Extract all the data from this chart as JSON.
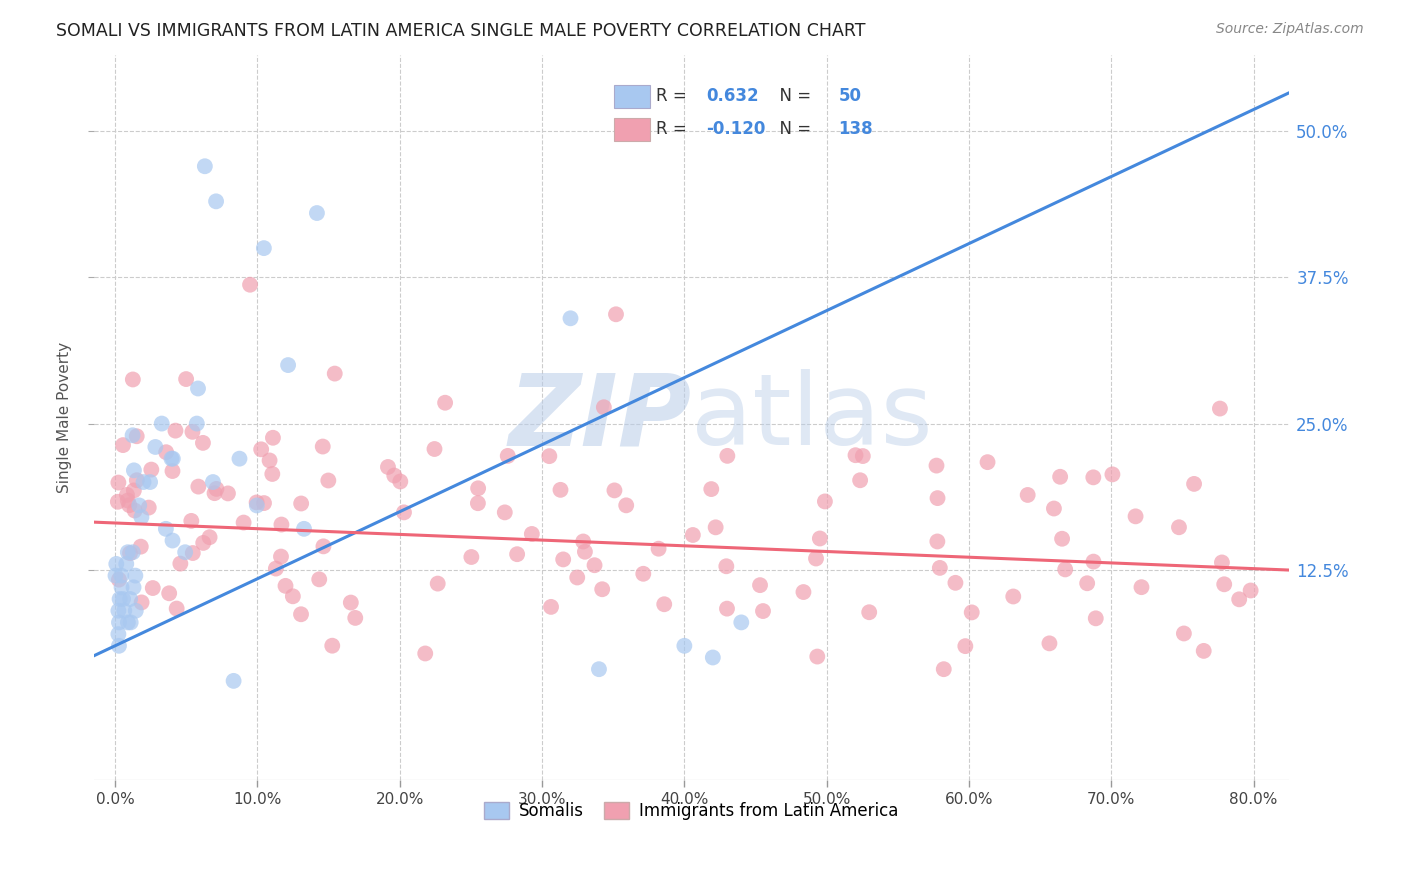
{
  "title": "SOMALI VS IMMIGRANTS FROM LATIN AMERICA SINGLE MALE POVERTY CORRELATION CHART",
  "source": "Source: ZipAtlas.com",
  "xlabel_vals": [
    0.0,
    0.1,
    0.2,
    0.3,
    0.4,
    0.5,
    0.6,
    0.7,
    0.8
  ],
  "ylabel": "Single Male Poverty",
  "ylabel_vals": [
    0.125,
    0.25,
    0.375,
    0.5
  ],
  "xlim": [
    -0.015,
    0.825
  ],
  "ylim": [
    -0.055,
    0.565
  ],
  "somali_R": 0.632,
  "somali_N": 50,
  "latin_R": -0.12,
  "latin_N": 138,
  "somali_color": "#a8c8f0",
  "latin_color": "#f0a0b0",
  "somali_line_color": "#4488dd",
  "latin_line_color": "#ee6677",
  "watermark_zip": "ZIP",
  "watermark_atlas": "atlas",
  "watermark_color": "#c8d8f0",
  "legend_label_somali": "Somalis",
  "legend_label_latin": "Immigrants from Latin America",
  "legend_R1": "R = ",
  "legend_V1": "0.632",
  "legend_N1_label": "N = ",
  "legend_N1": "50",
  "legend_R2": "R = ",
  "legend_V2": "-0.120",
  "legend_N2_label": "N = ",
  "legend_N2": "138"
}
